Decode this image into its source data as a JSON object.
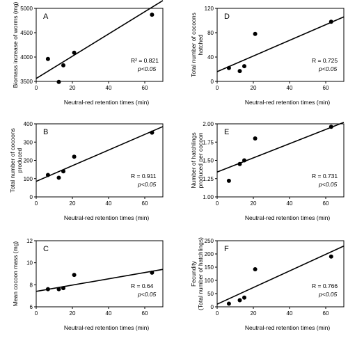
{
  "chart_data": [
    {
      "type": "scatter",
      "panel": "A",
      "xlabel": "Neutral-red retention times (min)",
      "ylabel": "Biomass increase of worms (mg)",
      "ylabel2": "",
      "xlim": [
        0,
        70
      ],
      "ylim": [
        3500,
        5000
      ],
      "xticks": [
        0,
        20,
        40,
        60
      ],
      "yticks": [
        3500,
        4000,
        4500,
        5000
      ],
      "x": [
        6.5,
        12.5,
        15,
        21,
        64
      ],
      "y": [
        3960,
        3490,
        3830,
        4090,
        4870
      ],
      "fit": {
        "x": [
          0,
          70
        ],
        "y": [
          3560,
          5160
        ]
      },
      "stat": "R² = 0.821",
      "p": "p<0.05"
    },
    {
      "type": "scatter",
      "panel": "B",
      "xlabel": "Neutral-red retention times (min)",
      "ylabel": "Total number of cocoons",
      "ylabel2": "produced",
      "xlim": [
        0,
        70
      ],
      "ylim": [
        0,
        400
      ],
      "xticks": [
        0,
        20,
        40,
        60
      ],
      "yticks": [
        0,
        100,
        200,
        300,
        400
      ],
      "x": [
        6.5,
        12.5,
        15,
        21,
        64
      ],
      "y": [
        120,
        105,
        140,
        220,
        352
      ],
      "fit": {
        "x": [
          0,
          70
        ],
        "y": [
          85,
          385
        ]
      },
      "stat": "R = 0.911",
      "p": "p<0.05"
    },
    {
      "type": "scatter",
      "panel": "C",
      "xlabel": "Neutral-red retention times (min)",
      "ylabel": "Mean cocoon mass (mg)",
      "ylabel2": "",
      "xlim": [
        0,
        70
      ],
      "ylim": [
        6,
        12
      ],
      "xticks": [
        0,
        20,
        40,
        60
      ],
      "yticks": [
        6,
        8,
        10,
        12
      ],
      "x": [
        6.5,
        12.5,
        15,
        21,
        64
      ],
      "y": [
        7.6,
        7.6,
        7.7,
        8.9,
        9.1
      ],
      "fit": {
        "x": [
          0,
          70
        ],
        "y": [
          7.4,
          9.4
        ]
      },
      "stat": "R = 0.64",
      "p": "p<0.05"
    },
    {
      "type": "scatter",
      "panel": "D",
      "xlabel": "Neutral-red retention times (min)",
      "ylabel": "Total number of cocoons",
      "ylabel2": "hatched",
      "xlim": [
        0,
        70
      ],
      "ylim": [
        0,
        120
      ],
      "xticks": [
        0,
        20,
        40,
        60
      ],
      "yticks": [
        0,
        40,
        80,
        120
      ],
      "x": [
        6.5,
        12.5,
        15,
        21,
        63
      ],
      "y": [
        22,
        17,
        25,
        78,
        98
      ],
      "fit": {
        "x": [
          0,
          70
        ],
        "y": [
          16,
          106
        ]
      },
      "stat": "R = 0.725",
      "p": "p<0.05"
    },
    {
      "type": "scatter",
      "panel": "E",
      "xlabel": "Neutral-red retention times (min)",
      "ylabel": "Number of hatchlings",
      "ylabel2": "produced per cocoon",
      "xlim": [
        0,
        70
      ],
      "ylim": [
        1.0,
        2.0
      ],
      "xticks": [
        0,
        20,
        40,
        60
      ],
      "yticks": [
        1.0,
        1.25,
        1.5,
        1.75,
        2.0
      ],
      "ytick_labels": [
        "1.00",
        "1.25",
        "1.50",
        "1.75",
        "2.00"
      ],
      "x": [
        6.5,
        12.5,
        15,
        21,
        63
      ],
      "y": [
        1.22,
        1.45,
        1.5,
        1.8,
        1.96
      ],
      "fit": {
        "x": [
          0,
          70
        ],
        "y": [
          1.34,
          2.02
        ]
      },
      "stat": "R = 0.731",
      "p": "p<0.05"
    },
    {
      "type": "scatter",
      "panel": "F",
      "xlabel": "Neutral-red retention times (min)",
      "ylabel": "Fecundity",
      "ylabel2": "(Total number of hatchlings)",
      "xlim": [
        0,
        70
      ],
      "ylim": [
        0,
        250
      ],
      "xticks": [
        0,
        20,
        40,
        60
      ],
      "yticks": [
        0,
        50,
        100,
        150,
        200,
        250
      ],
      "x": [
        6.5,
        12.5,
        15,
        21,
        63
      ],
      "y": [
        12,
        25,
        35,
        142,
        190
      ],
      "fit": {
        "x": [
          0,
          70
        ],
        "y": [
          10,
          230
        ]
      },
      "stat": "R = 0.766",
      "p": "p<0.05"
    }
  ]
}
